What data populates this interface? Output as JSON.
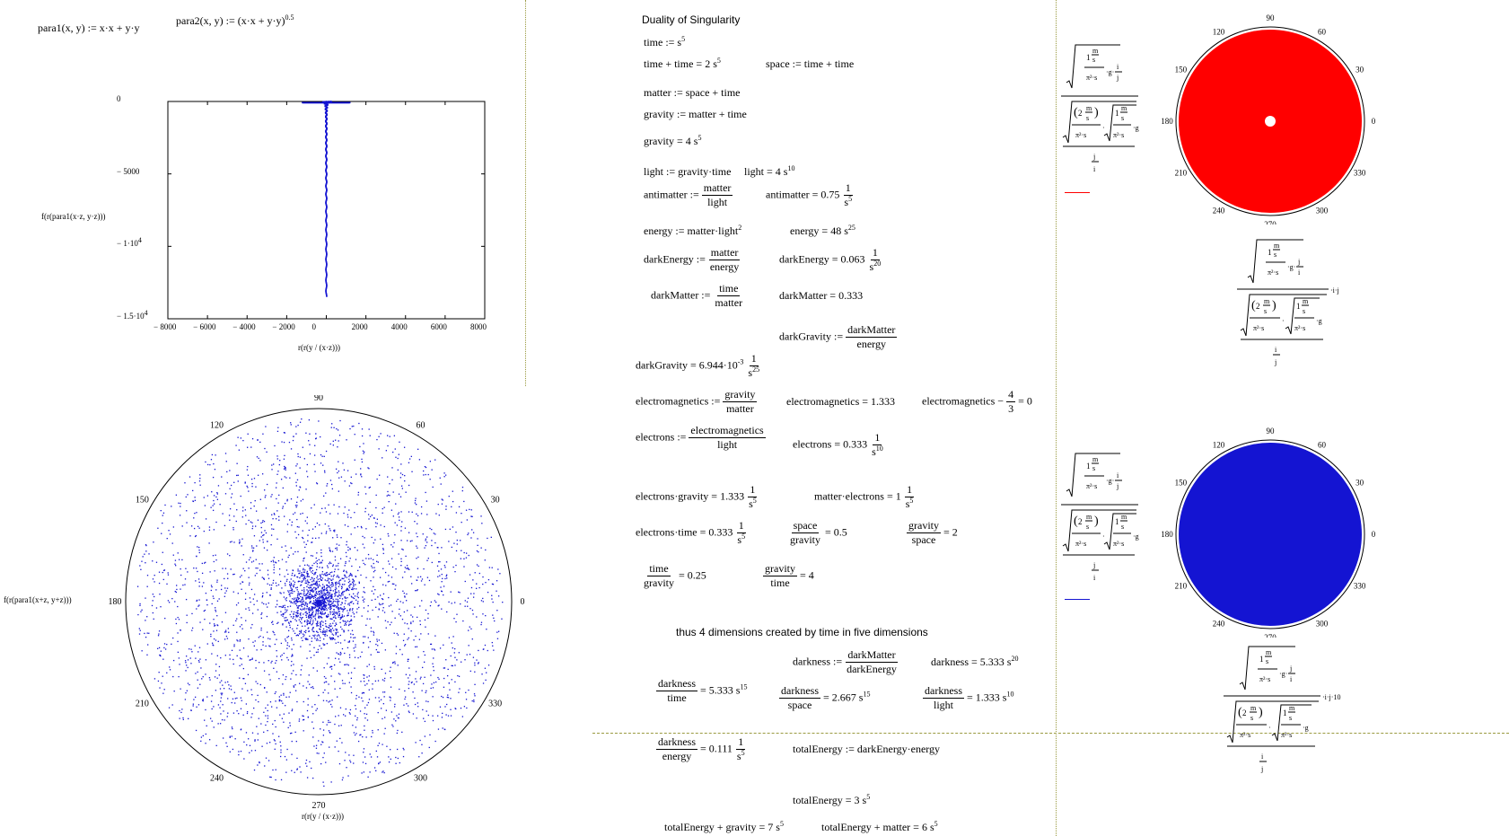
{
  "colors": {
    "blue": "#1414d2",
    "red": "#ff0000",
    "separator": "#9a9a40",
    "frame": "#000000"
  },
  "defs": {
    "para1": "para1(x, y) := x·x + y·y",
    "para2_base": "para2(x, y) := (x·x + y·y)",
    "para2_exp": "0.5"
  },
  "plot1": {
    "ylabel": "f(r(para1(x·z, y·z)))",
    "xlabel": "r(r(y / (x·z)))",
    "yticks": [
      "0",
      "− 5000",
      "− 1·10",
      "− 1.5·10"
    ],
    "ytick_exps": [
      "",
      "",
      "4",
      "4"
    ],
    "xticks": [
      "− 8000",
      "− 6000",
      "− 4000",
      "− 2000",
      "0",
      "2000",
      "4000",
      "6000",
      "8000"
    ]
  },
  "chart_data": [
    {
      "type": "scatter",
      "title": "",
      "xlabel": "r(r(y/(x·z)))",
      "ylabel": "f(r(para1(x·z, y·z)))",
      "xlim": [
        -8000,
        8000
      ],
      "ylim": [
        -15000,
        0
      ],
      "x_ticks": [
        -8000,
        -6000,
        -4000,
        -2000,
        0,
        2000,
        4000,
        6000,
        8000
      ],
      "y_ticks": [
        0,
        -5000,
        -10000,
        -15000
      ],
      "series": [
        {
          "points": [
            [
              -300,
              -60
            ],
            [
              -150,
              -400
            ],
            [
              -80,
              -1500
            ],
            [
              -40,
              -3500
            ],
            [
              -20,
              -6000
            ],
            [
              -10,
              -9000
            ],
            [
              0,
              -13500
            ],
            [
              10,
              -9000
            ],
            [
              20,
              -6000
            ],
            [
              40,
              -3500
            ],
            [
              80,
              -1500
            ],
            [
              150,
              -400
            ],
            [
              300,
              -60
            ]
          ]
        }
      ],
      "color": "#1414d2"
    },
    {
      "type": "scatter",
      "projection": "polar",
      "rlabel": "f(r(para1(x+z, y+z)))",
      "thetalabel": "r(r(y/(x·z)))",
      "angle_ticks": [
        0,
        30,
        60,
        90,
        120,
        150,
        180,
        210,
        240,
        270,
        300,
        330
      ],
      "color": "#1414d2"
    },
    {
      "type": "area",
      "projection": "polar",
      "fill": "#ff0000",
      "angle_ticks": [
        0,
        30,
        60,
        90,
        120,
        150,
        180,
        210,
        240,
        270,
        300,
        330
      ]
    },
    {
      "type": "area",
      "projection": "polar",
      "fill": "#1414d2",
      "angle_ticks": [
        0,
        30,
        60,
        90,
        120,
        150,
        180,
        210,
        240,
        270,
        300,
        330
      ]
    }
  ],
  "polar": {
    "angle_labels": [
      "0",
      "30",
      "60",
      "90",
      "120",
      "150",
      "180",
      "210",
      "240",
      "270",
      "300",
      "330"
    ],
    "big_ylabel": "f(r(para1(x+z, y+z)))",
    "big_thetalabel": "r(r(y / (x·z)))"
  },
  "sheet": {
    "title": "Duality of Singularity",
    "time_def": "time := s",
    "time_sum": "time + time = 2 s",
    "space_def": "space := time + time",
    "matter_def": "matter := space + time",
    "gravity_def": "gravity := matter + time",
    "gravity_val": "gravity = 4 s",
    "light_def": "light := gravity·time",
    "light_val": "light = 4 s",
    "antimatter_def": "antimatter :=",
    "antimatter_num": "matter",
    "antimatter_den": "light",
    "antimatter_val": "antimatter = 0.75",
    "energy_def": "energy := matter·light",
    "energy_val": "energy = 48 s",
    "darkEnergy_def": "darkEnergy :=",
    "darkEnergy_num": "matter",
    "darkEnergy_den": "energy",
    "darkEnergy_val": "darkEnergy = 0.063",
    "darkMatter_def": "darkMatter :=",
    "darkMatter_num": "time",
    "darkMatter_den": "matter",
    "darkMatter_val": "darkMatter = 0.333",
    "darkGravity_def": "darkGravity :=",
    "darkGravity_num": "darkMatter",
    "darkGravity_den": "energy",
    "darkGravity_val": "darkGravity = 6.944·10",
    "em_def": "electromagnetics :=",
    "em_num": "gravity",
    "em_den": "matter",
    "em_val": "electromagnetics = 1.333",
    "em_eq_a": "electromagnetics −",
    "em_eq_num": "4",
    "em_eq_den": "3",
    "em_eq_b": "= 0",
    "electrons_def": "electrons :=",
    "electrons_num": "electromagnetics",
    "electrons_den": "light",
    "electrons_val": "electrons = 0.333",
    "eg_val": "electrons·gravity = 1.333",
    "me_val": "matter·electrons = 1",
    "et_val": "electrons·time = 0.333",
    "sg_num": "space",
    "sg_den": "gravity",
    "sg_val": "= 0.5",
    "gs_num": "gravity",
    "gs_den": "space",
    "gs_val": "= 2",
    "tg_num": "time",
    "tg_den": "gravity",
    "tg_val": "= 0.25",
    "gt_num": "gravity",
    "gt_den": "time",
    "gt_val": "= 4",
    "thus": "thus 4 dimensions created by time in five dimensions",
    "darkness_def": "darkness :=",
    "darkness_num": "darkMatter",
    "darkness_den": "darkEnergy",
    "darkness_val": "darkness = 5.333 s",
    "dt_num": "darkness",
    "dt_den": "time",
    "dt_val": "= 5.333 s",
    "ds_num": "darkness",
    "ds_den": "space",
    "ds_val": "= 2.667 s",
    "dl_num": "darkness",
    "dl_den": "light",
    "dl_val": "= 1.333 s",
    "de_num": "darkness",
    "de_den": "energy",
    "de_val": "= 0.111",
    "totalEnergy_def": "totalEnergy := darkEnergy·energy",
    "totalEnergy_val": "totalEnergy = 3 s",
    "teg_val": "totalEnergy + gravity = 7 s",
    "tem_val": "totalEnergy + matter = 6 s",
    "one": "1",
    "s": "s",
    "exp5": "5",
    "exp10": "10",
    "exp15": "15",
    "exp20": "20",
    "exp25": "25",
    "exp2": "2",
    "expm3": "-3"
  },
  "formula": {
    "one": "1",
    "m": "m",
    "s": "s",
    "g": "g",
    "i": "i",
    "j": "j",
    "two": "2",
    "pi2s": "π²·s",
    "ij": "·i·j",
    "ij10": "·i·j·10"
  }
}
